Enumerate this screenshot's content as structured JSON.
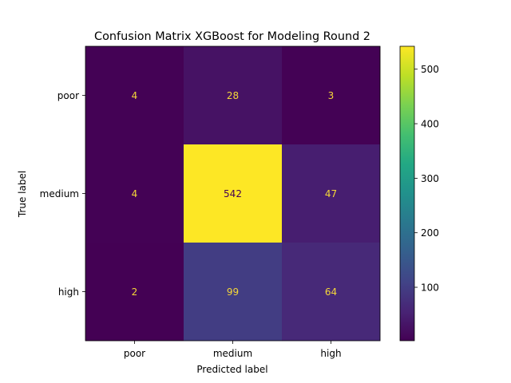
{
  "chart_data": {
    "type": "heatmap",
    "title": "Confusion Matrix XGBoost for Modeling Round 2",
    "xlabel": "Predicted label",
    "ylabel": "True label",
    "x_categories": [
      "poor",
      "medium",
      "high"
    ],
    "y_categories": [
      "poor",
      "medium",
      "high"
    ],
    "values": [
      [
        4,
        28,
        3
      ],
      [
        4,
        542,
        47
      ],
      [
        2,
        99,
        64
      ]
    ],
    "colormap": "viridis",
    "colorbar": {
      "range": [
        2,
        542
      ],
      "ticks": [
        100,
        200,
        300,
        400,
        500
      ]
    },
    "label_color": "#f5d838"
  }
}
